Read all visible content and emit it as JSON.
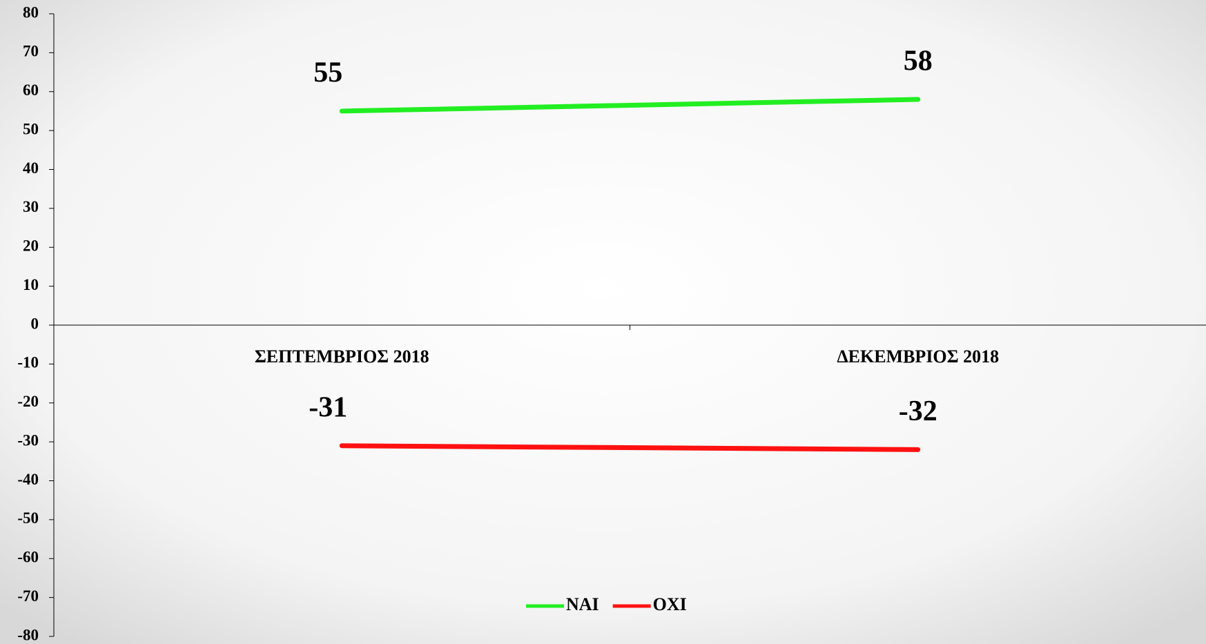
{
  "chart_data": {
    "type": "line",
    "categories": [
      "ΣΕΠΤΕΜΒΡΙΟΣ 2018",
      "ΔΕΚΕΜΒΡΙΟΣ 2018"
    ],
    "series": [
      {
        "name": "NAI",
        "color": "#22ee22",
        "values": [
          55,
          58
        ]
      },
      {
        "name": "OXI",
        "color": "#ff1111",
        "values": [
          -31,
          -32
        ]
      }
    ],
    "ylim": [
      -80,
      80
    ],
    "yticks": [
      -80,
      -70,
      -60,
      -50,
      -40,
      -30,
      -20,
      -10,
      0,
      10,
      20,
      30,
      40,
      50,
      60,
      70,
      80
    ],
    "legend": "bottom"
  }
}
